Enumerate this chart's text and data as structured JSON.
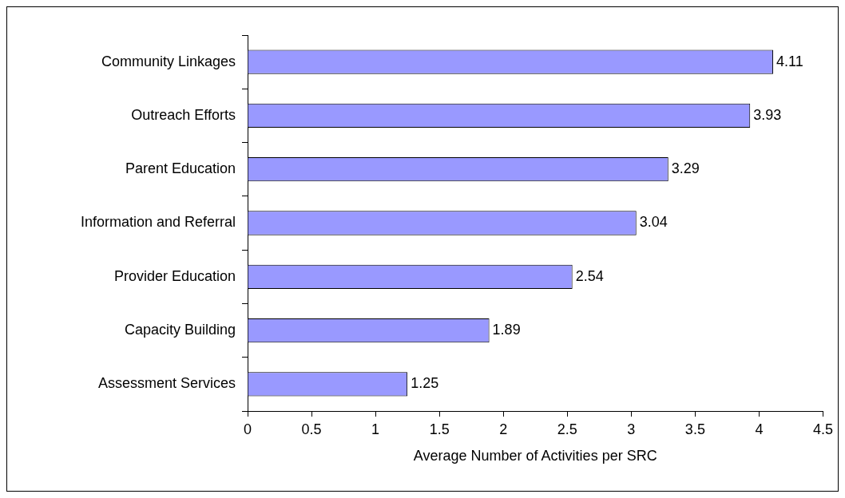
{
  "chart_data": {
    "type": "bar",
    "orientation": "horizontal",
    "xlabel": "Average Number of Activities per SRC",
    "categories": [
      "Community Linkages",
      "Outreach Efforts",
      "Parent Education",
      "Information and Referral",
      "Provider Education",
      "Capacity Building",
      "Assessment Services"
    ],
    "values": [
      4.11,
      3.93,
      3.29,
      3.04,
      2.54,
      1.89,
      1.25
    ],
    "color": "#9999ff",
    "xlim": [
      0,
      4.5
    ],
    "xticks": [
      0,
      0.5,
      1,
      1.5,
      2,
      2.5,
      3,
      3.5,
      4,
      4.5
    ],
    "data_labels": true,
    "grid": false,
    "legend": false
  }
}
